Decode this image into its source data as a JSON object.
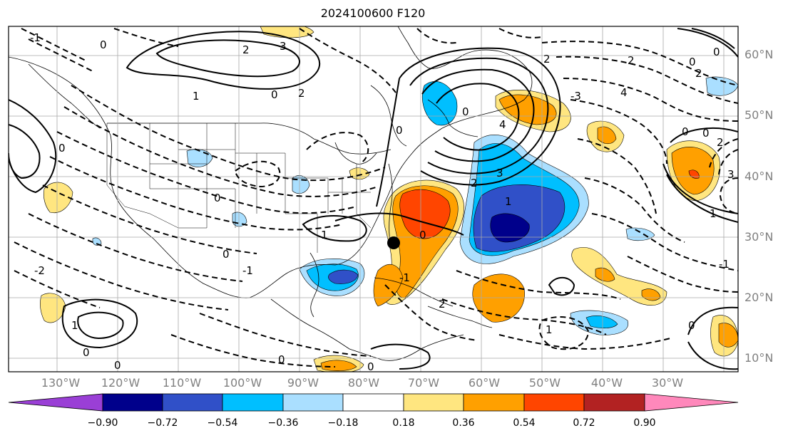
{
  "title": "2024100600 F120",
  "map": {
    "lon_labels": [
      "130°W",
      "120°W",
      "110°W",
      "100°W",
      "90°W",
      "80°W",
      "70°W",
      "60°W",
      "50°W",
      "40°W",
      "30°W"
    ],
    "lat_labels": [
      "60°N",
      "50°N",
      "40°N",
      "30°N",
      "20°N",
      "10°N"
    ],
    "contour_labels": [
      "0",
      "1",
      "2",
      "3",
      "4",
      "-1",
      "-2",
      "-3"
    ],
    "marker": "black-dot",
    "grid": true
  },
  "colorbar": {
    "ticks": [
      "−0.90",
      "−0.72",
      "−0.54",
      "−0.36",
      "−0.18",
      "0.18",
      "0.36",
      "0.54",
      "0.72",
      "0.90"
    ],
    "colors": [
      "#9a3fd6",
      "#00008b",
      "#3050c8",
      "#00bfff",
      "#aadfff",
      "#ffffff",
      "#ffe680",
      "#ffa000",
      "#ff4500",
      "#b22222",
      "#ff88bb"
    ]
  }
}
